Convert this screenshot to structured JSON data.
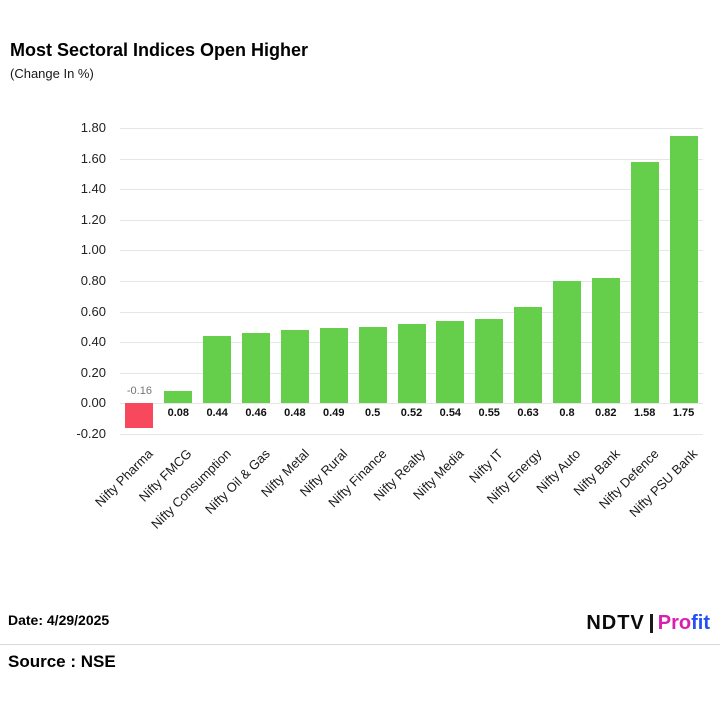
{
  "chart_data": {
    "type": "bar",
    "title": "Most Sectoral Indices Open Higher",
    "subtitle": "(Change In %)",
    "categories": [
      "Nifty Pharma",
      "Nifty FMCG",
      "Nifty Consumption",
      "Nifty Oil & Gas",
      "Nifty Metal",
      "Nifty Rural",
      "Nifty Finance",
      "Nifty Realty",
      "Nifty Media",
      "Nifty IT",
      "Nifty Energy",
      "Nifty Auto",
      "Nifty Bank",
      "Nifty Defence",
      "Nifty PSU Bank"
    ],
    "values": [
      -0.16,
      0.08,
      0.44,
      0.46,
      0.48,
      0.49,
      0.5,
      0.52,
      0.54,
      0.55,
      0.63,
      0.8,
      0.82,
      1.58,
      1.75
    ],
    "value_labels": [
      "-0.16",
      "0.08",
      "0.44",
      "0.46",
      "0.48",
      "0.49",
      "0.5",
      "0.52",
      "0.54",
      "0.55",
      "0.63",
      "0.8",
      "0.82",
      "1.58",
      "1.75"
    ],
    "xlabel": "",
    "ylabel": "",
    "ylim": [
      -0.2,
      1.8
    ],
    "ytick_step": 0.2,
    "grid": true,
    "legend_position": "none",
    "colors": {
      "positive_bar": "#65cf4b",
      "negative_bar": "#f8485e",
      "gridline": "#e6e6e6",
      "value_label": "#111111",
      "negative_value_label": "#757575"
    }
  },
  "footer": {
    "date": "Date: 4/29/2025",
    "source": "Source : NSE"
  },
  "logo": {
    "ndtv": "NDTV",
    "profit_left": "Pro",
    "profit_right": "fit"
  }
}
